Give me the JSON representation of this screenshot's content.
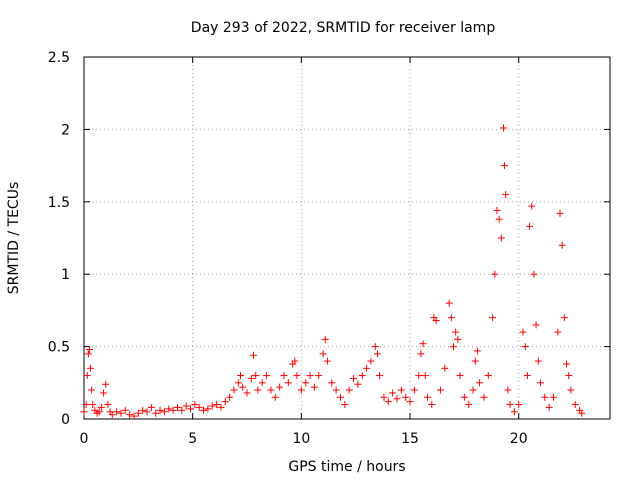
{
  "chart_data": {
    "type": "scatter",
    "title": "Day 293 of 2022, SRMTID for receiver lamp",
    "xlabel": "GPS time / hours",
    "ylabel": "SRMTID / TECUs",
    "xlim": [
      0,
      24.2
    ],
    "ylim": [
      0,
      2.5
    ],
    "xticks": [
      0,
      5,
      10,
      15,
      20
    ],
    "xtick_labels": [
      "0",
      "5",
      "10",
      "15",
      "20"
    ],
    "yticks": [
      0,
      0.5,
      1,
      1.5,
      2,
      2.5
    ],
    "ytick_labels": [
      "0",
      "0.5",
      "1",
      "1.5",
      "2",
      "2.5"
    ],
    "grid": true,
    "marker": "plus",
    "color": "#ff0000",
    "series": [
      {
        "name": "SRMTID",
        "points": [
          [
            0.0,
            0.05
          ],
          [
            0.1,
            0.1
          ],
          [
            0.15,
            0.3
          ],
          [
            0.2,
            0.45
          ],
          [
            0.25,
            0.48
          ],
          [
            0.3,
            0.35
          ],
          [
            0.35,
            0.2
          ],
          [
            0.4,
            0.1
          ],
          [
            0.5,
            0.06
          ],
          [
            0.6,
            0.04
          ],
          [
            0.7,
            0.05
          ],
          [
            0.8,
            0.08
          ],
          [
            0.9,
            0.18
          ],
          [
            1.0,
            0.24
          ],
          [
            1.1,
            0.1
          ],
          [
            1.2,
            0.05
          ],
          [
            1.3,
            0.03
          ],
          [
            1.5,
            0.05
          ],
          [
            1.7,
            0.04
          ],
          [
            1.9,
            0.06
          ],
          [
            2.1,
            0.03
          ],
          [
            2.3,
            0.02
          ],
          [
            2.5,
            0.04
          ],
          [
            2.7,
            0.06
          ],
          [
            2.9,
            0.05
          ],
          [
            3.1,
            0.08
          ],
          [
            3.3,
            0.04
          ],
          [
            3.5,
            0.06
          ],
          [
            3.7,
            0.05
          ],
          [
            3.9,
            0.07
          ],
          [
            4.1,
            0.06
          ],
          [
            4.3,
            0.08
          ],
          [
            4.5,
            0.06
          ],
          [
            4.7,
            0.09
          ],
          [
            4.9,
            0.07
          ],
          [
            5.1,
            0.1
          ],
          [
            5.3,
            0.08
          ],
          [
            5.5,
            0.06
          ],
          [
            5.7,
            0.07
          ],
          [
            5.9,
            0.09
          ],
          [
            6.1,
            0.1
          ],
          [
            6.3,
            0.08
          ],
          [
            6.5,
            0.12
          ],
          [
            6.7,
            0.15
          ],
          [
            6.9,
            0.2
          ],
          [
            7.1,
            0.25
          ],
          [
            7.2,
            0.3
          ],
          [
            7.3,
            0.22
          ],
          [
            7.5,
            0.18
          ],
          [
            7.7,
            0.28
          ],
          [
            7.8,
            0.44
          ],
          [
            7.9,
            0.3
          ],
          [
            8.0,
            0.2
          ],
          [
            8.2,
            0.25
          ],
          [
            8.4,
            0.3
          ],
          [
            8.6,
            0.2
          ],
          [
            8.8,
            0.15
          ],
          [
            9.0,
            0.22
          ],
          [
            9.2,
            0.3
          ],
          [
            9.4,
            0.25
          ],
          [
            9.6,
            0.38
          ],
          [
            9.7,
            0.4
          ],
          [
            9.8,
            0.3
          ],
          [
            10.0,
            0.2
          ],
          [
            10.2,
            0.25
          ],
          [
            10.4,
            0.3
          ],
          [
            10.6,
            0.22
          ],
          [
            10.8,
            0.3
          ],
          [
            11.0,
            0.45
          ],
          [
            11.1,
            0.55
          ],
          [
            11.2,
            0.4
          ],
          [
            11.4,
            0.25
          ],
          [
            11.6,
            0.2
          ],
          [
            11.8,
            0.15
          ],
          [
            12.0,
            0.1
          ],
          [
            12.2,
            0.2
          ],
          [
            12.4,
            0.28
          ],
          [
            12.6,
            0.24
          ],
          [
            12.8,
            0.3
          ],
          [
            13.0,
            0.35
          ],
          [
            13.2,
            0.4
          ],
          [
            13.4,
            0.5
          ],
          [
            13.5,
            0.45
          ],
          [
            13.6,
            0.3
          ],
          [
            13.8,
            0.15
          ],
          [
            14.0,
            0.12
          ],
          [
            14.2,
            0.18
          ],
          [
            14.4,
            0.14
          ],
          [
            14.6,
            0.2
          ],
          [
            14.8,
            0.15
          ],
          [
            15.0,
            0.12
          ],
          [
            15.2,
            0.2
          ],
          [
            15.4,
            0.3
          ],
          [
            15.5,
            0.45
          ],
          [
            15.6,
            0.52
          ],
          [
            15.7,
            0.3
          ],
          [
            15.8,
            0.15
          ],
          [
            16.0,
            0.1
          ],
          [
            16.1,
            0.7
          ],
          [
            16.2,
            0.68
          ],
          [
            16.4,
            0.2
          ],
          [
            16.6,
            0.35
          ],
          [
            16.8,
            0.8
          ],
          [
            16.9,
            0.7
          ],
          [
            17.0,
            0.5
          ],
          [
            17.1,
            0.6
          ],
          [
            17.2,
            0.55
          ],
          [
            17.3,
            0.3
          ],
          [
            17.5,
            0.15
          ],
          [
            17.7,
            0.1
          ],
          [
            17.9,
            0.2
          ],
          [
            18.0,
            0.4
          ],
          [
            18.1,
            0.47
          ],
          [
            18.2,
            0.25
          ],
          [
            18.4,
            0.15
          ],
          [
            18.6,
            0.3
          ],
          [
            18.8,
            0.7
          ],
          [
            18.9,
            1.0
          ],
          [
            19.0,
            1.44
          ],
          [
            19.1,
            1.38
          ],
          [
            19.2,
            1.25
          ],
          [
            19.3,
            2.01
          ],
          [
            19.35,
            1.75
          ],
          [
            19.4,
            1.55
          ],
          [
            19.5,
            0.2
          ],
          [
            19.6,
            0.1
          ],
          [
            19.8,
            0.05
          ],
          [
            20.0,
            0.1
          ],
          [
            20.2,
            0.6
          ],
          [
            20.3,
            0.5
          ],
          [
            20.4,
            0.3
          ],
          [
            20.5,
            1.33
          ],
          [
            20.6,
            1.47
          ],
          [
            20.7,
            1.0
          ],
          [
            20.8,
            0.65
          ],
          [
            20.9,
            0.4
          ],
          [
            21.0,
            0.25
          ],
          [
            21.2,
            0.15
          ],
          [
            21.4,
            0.08
          ],
          [
            21.6,
            0.15
          ],
          [
            21.8,
            0.6
          ],
          [
            21.9,
            1.42
          ],
          [
            22.0,
            1.2
          ],
          [
            22.1,
            0.7
          ],
          [
            22.2,
            0.38
          ],
          [
            22.3,
            0.3
          ],
          [
            22.4,
            0.2
          ],
          [
            22.6,
            0.1
          ],
          [
            22.8,
            0.06
          ],
          [
            22.9,
            0.04
          ]
        ]
      }
    ]
  }
}
